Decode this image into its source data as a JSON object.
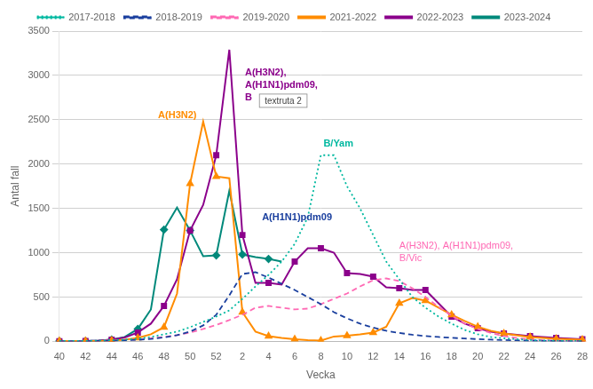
{
  "chart_data": {
    "type": "line",
    "x_label": "Vecka",
    "y_label": "Antal fall",
    "categories": [
      "40",
      null,
      "42",
      null,
      "44",
      null,
      "46",
      null,
      "48",
      null,
      "50",
      null,
      "52",
      null,
      "2",
      null,
      "4",
      null,
      "6",
      null,
      "8",
      null,
      "10",
      null,
      "12",
      null,
      "14",
      null,
      "16",
      null,
      "18",
      null,
      "20",
      null,
      "22",
      null,
      "24",
      null,
      "26",
      null,
      "28"
    ],
    "ylim": [
      0,
      3500
    ],
    "yticks": [
      0,
      500,
      1000,
      1500,
      2000,
      2500,
      3000,
      3500
    ],
    "grid": "y",
    "legend": "top",
    "series": [
      {
        "name": "2017-2018",
        "color": "#00B8A0",
        "line_style": "dotted",
        "marker": "none",
        "values": [
          5,
          5,
          5,
          8,
          15,
          20,
          30,
          50,
          80,
          110,
          160,
          220,
          280,
          350,
          480,
          620,
          750,
          900,
          1100,
          1400,
          2100,
          2100,
          1750,
          1500,
          1200,
          900,
          700,
          500,
          380,
          280,
          200,
          130,
          80,
          50,
          35,
          25,
          15,
          10,
          7,
          5,
          3
        ]
      },
      {
        "name": "2018-2019",
        "color": "#1A3F9E",
        "line_style": "dashed",
        "marker": "none",
        "values": [
          3,
          3,
          3,
          5,
          8,
          12,
          18,
          28,
          45,
          70,
          110,
          180,
          300,
          520,
          760,
          780,
          720,
          650,
          580,
          500,
          420,
          330,
          260,
          200,
          155,
          120,
          95,
          75,
          60,
          50,
          40,
          33,
          25,
          20,
          15,
          12,
          8,
          6,
          4,
          3,
          2
        ]
      },
      {
        "name": "2019-2020",
        "color": "#FF69B4",
        "line_style": "dashed",
        "marker": "none",
        "values": [
          3,
          3,
          3,
          5,
          10,
          15,
          22,
          35,
          50,
          70,
          100,
          140,
          185,
          240,
          300,
          380,
          400,
          380,
          360,
          370,
          420,
          480,
          540,
          620,
          690,
          710,
          680,
          600,
          500,
          390,
          290,
          200,
          140,
          95,
          60,
          38,
          22,
          13,
          8,
          4,
          2
        ]
      },
      {
        "name": "2021-2022",
        "color": "#FF8C00",
        "line_style": "solid",
        "marker": "triangle",
        "values": [
          3,
          3,
          3,
          5,
          10,
          20,
          40,
          80,
          160,
          540,
          1780,
          2480,
          1860,
          1840,
          330,
          110,
          60,
          40,
          25,
          15,
          10,
          55,
          65,
          80,
          100,
          165,
          430,
          490,
          460,
          380,
          300,
          230,
          165,
          120,
          90,
          70,
          50,
          40,
          30,
          25,
          20
        ]
      },
      {
        "name": "2022-2023",
        "color": "#8B008B",
        "line_style": "solid",
        "marker": "square",
        "values": [
          3,
          3,
          5,
          10,
          20,
          45,
          100,
          200,
          400,
          700,
          1250,
          1540,
          2100,
          3290,
          1200,
          660,
          660,
          640,
          900,
          1050,
          1050,
          1000,
          770,
          760,
          730,
          610,
          600,
          580,
          580,
          430,
          280,
          200,
          150,
          110,
          90,
          75,
          60,
          50,
          40,
          32,
          25
        ]
      },
      {
        "name": "2023-2024",
        "color": "#00897B",
        "line_style": "solid",
        "marker": "diamond",
        "values": [
          3,
          3,
          5,
          10,
          20,
          50,
          140,
          360,
          1260,
          1510,
          1250,
          960,
          970,
          1700,
          980,
          950,
          930,
          900,
          null,
          null,
          null,
          null,
          null,
          null,
          null,
          null,
          null,
          null,
          null,
          null,
          null,
          null,
          null,
          null,
          null,
          null,
          null,
          null,
          null,
          null,
          null
        ]
      }
    ],
    "annotations": [
      {
        "text": "A(H3N2)",
        "color": "#FF8C00"
      },
      {
        "text": "A(H3N2),\nA(H1N1)pdm09,\nB",
        "color": "#8B008B"
      },
      {
        "text": "textruta 2",
        "color": "#444444"
      },
      {
        "text": "B/Yam",
        "color": "#00B8A0"
      },
      {
        "text": "A(H1N1)pdm09",
        "color": "#1A3F9E"
      },
      {
        "text": "A(H3N2), A(H1N1)pdm09,\nB/Vic",
        "color": "#FF69B4"
      }
    ]
  }
}
